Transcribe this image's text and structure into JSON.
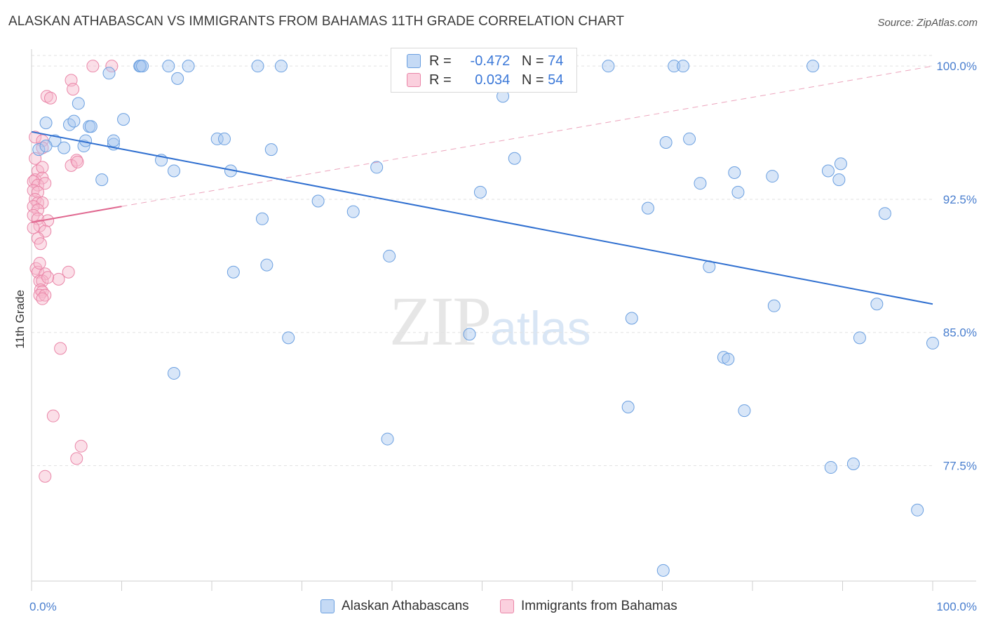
{
  "title": "ALASKAN ATHABASCAN VS IMMIGRANTS FROM BAHAMAS 11TH GRADE CORRELATION CHART",
  "source": "Source: ZipAtlas.com",
  "watermark": {
    "zip": "ZIP",
    "atlas": "atlas"
  },
  "colors": {
    "blue_fill": "#a8c8f0",
    "blue_stroke": "#6a9fe0",
    "blue_line": "#2f6fd0",
    "pink_fill": "#f6b8cc",
    "pink_stroke": "#ea86a8",
    "pink_line": "#e06890",
    "tick_text": "#4a7fcf",
    "grid": "#e2e2e2"
  },
  "legend": {
    "rows": [
      {
        "r_label": "R =",
        "r_value": "-0.472",
        "n_label": "N =",
        "n_value": "74"
      },
      {
        "r_label": "R =",
        "r_value": "0.034",
        "n_label": "N =",
        "n_value": "54"
      }
    ]
  },
  "bottom_legend": {
    "series1": "Alaskan Athabascans",
    "series2": "Immigrants from Bahamas"
  },
  "chart_data": {
    "type": "scatter",
    "title": "ALASKAN ATHABASCAN VS IMMIGRANTS FROM BAHAMAS 11TH GRADE CORRELATION CHART",
    "xlabel": "",
    "ylabel": "11th Grade",
    "xlim": [
      0,
      100
    ],
    "ylim": [
      71.0,
      100.6
    ],
    "x_tick_labels": [
      "0.0%",
      "100.0%"
    ],
    "y_ticks": [
      77.5,
      85.0,
      92.5,
      100.0
    ],
    "y_tick_labels": [
      "77.5%",
      "85.0%",
      "92.5%",
      "100.0%"
    ],
    "grid": true,
    "legend_position": "top-center",
    "series": [
      {
        "name": "Alaskan Athabascans",
        "color": "#a8c8f0",
        "trend": {
          "x": [
            0,
            100
          ],
          "y": [
            96.3,
            86.6
          ]
        },
        "points": [
          [
            0.8,
            95.3
          ],
          [
            1.6,
            96.8
          ],
          [
            2.6,
            95.8
          ],
          [
            1.6,
            95.5
          ],
          [
            3.6,
            95.4
          ],
          [
            4.2,
            96.7
          ],
          [
            4.7,
            96.9
          ],
          [
            5.2,
            97.9
          ],
          [
            5.8,
            95.5
          ],
          [
            6.0,
            95.8
          ],
          [
            6.4,
            96.6
          ],
          [
            6.6,
            96.6
          ],
          [
            7.8,
            93.6
          ],
          [
            8.6,
            99.6
          ],
          [
            9.1,
            95.6
          ],
          [
            9.1,
            95.8
          ],
          [
            10.2,
            97.0
          ],
          [
            12.0,
            100.0
          ],
          [
            12.1,
            100.0
          ],
          [
            12.3,
            100.0
          ],
          [
            14.4,
            94.7
          ],
          [
            15.2,
            100.0
          ],
          [
            15.8,
            94.1
          ],
          [
            16.2,
            99.3
          ],
          [
            17.4,
            100.0
          ],
          [
            20.6,
            95.9
          ],
          [
            21.4,
            95.9
          ],
          [
            22.1,
            94.1
          ],
          [
            25.1,
            100.0
          ],
          [
            25.6,
            91.4
          ],
          [
            26.6,
            95.3
          ],
          [
            27.7,
            100.0
          ],
          [
            31.8,
            92.4
          ],
          [
            35.7,
            91.8
          ],
          [
            38.3,
            94.3
          ],
          [
            39.7,
            89.3
          ],
          [
            49.8,
            92.9
          ],
          [
            52.3,
            98.3
          ],
          [
            53.6,
            94.8
          ],
          [
            64.0,
            100.0
          ],
          [
            68.4,
            92.0
          ],
          [
            70.4,
            95.7
          ],
          [
            71.3,
            100.0
          ],
          [
            72.3,
            100.0
          ],
          [
            73.0,
            95.9
          ],
          [
            74.2,
            93.4
          ],
          [
            78.0,
            94.0
          ],
          [
            78.4,
            92.9
          ],
          [
            82.2,
            93.8
          ],
          [
            86.7,
            100.0
          ],
          [
            88.4,
            94.1
          ],
          [
            89.8,
            94.5
          ],
          [
            89.6,
            93.6
          ],
          [
            94.7,
            91.7
          ],
          [
            22.4,
            88.4
          ],
          [
            26.1,
            88.8
          ],
          [
            28.5,
            84.7
          ],
          [
            15.8,
            82.7
          ],
          [
            39.5,
            79.0
          ],
          [
            48.6,
            84.9
          ],
          [
            66.6,
            85.8
          ],
          [
            66.2,
            80.8
          ],
          [
            75.2,
            88.7
          ],
          [
            76.8,
            83.6
          ],
          [
            77.3,
            83.5
          ],
          [
            79.1,
            80.6
          ],
          [
            82.4,
            86.5
          ],
          [
            88.7,
            77.4
          ],
          [
            91.2,
            77.6
          ],
          [
            91.9,
            84.7
          ],
          [
            93.8,
            86.6
          ],
          [
            98.3,
            75.0
          ],
          [
            100.0,
            84.4
          ],
          [
            70.1,
            71.6
          ]
        ]
      },
      {
        "name": "Immigrants from Bahamas",
        "color": "#f6b8cc",
        "trend": {
          "x": [
            0,
            10
          ],
          "y": [
            91.2,
            92.1
          ]
        },
        "trend_extension": {
          "x": [
            10,
            100
          ],
          "y": [
            92.1,
            100.0
          ]
        },
        "points": [
          [
            1.7,
            98.3
          ],
          [
            2.1,
            98.2
          ],
          [
            4.4,
            99.2
          ],
          [
            4.6,
            98.7
          ],
          [
            6.8,
            100.0
          ],
          [
            8.9,
            100.0
          ],
          [
            0.4,
            96.0
          ],
          [
            1.2,
            95.8
          ],
          [
            5.0,
            94.7
          ],
          [
            4.4,
            94.4
          ],
          [
            5.1,
            94.6
          ],
          [
            0.7,
            94.1
          ],
          [
            1.2,
            94.3
          ],
          [
            0.4,
            93.6
          ],
          [
            1.2,
            93.7
          ],
          [
            0.2,
            93.5
          ],
          [
            0.7,
            93.3
          ],
          [
            1.5,
            93.4
          ],
          [
            0.2,
            93.0
          ],
          [
            0.7,
            92.9
          ],
          [
            0.4,
            92.5
          ],
          [
            0.7,
            92.3
          ],
          [
            1.2,
            92.3
          ],
          [
            0.2,
            92.1
          ],
          [
            0.7,
            91.9
          ],
          [
            0.2,
            91.6
          ],
          [
            0.7,
            91.4
          ],
          [
            1.8,
            91.3
          ],
          [
            0.9,
            91.0
          ],
          [
            1.5,
            90.7
          ],
          [
            0.7,
            90.3
          ],
          [
            1.0,
            90.0
          ],
          [
            0.5,
            88.6
          ],
          [
            0.7,
            88.4
          ],
          [
            1.5,
            88.3
          ],
          [
            0.9,
            87.9
          ],
          [
            1.2,
            87.9
          ],
          [
            3.0,
            88.0
          ],
          [
            4.1,
            88.4
          ],
          [
            1.0,
            87.4
          ],
          [
            1.2,
            87.3
          ],
          [
            0.9,
            87.1
          ],
          [
            1.5,
            87.1
          ],
          [
            1.2,
            86.9
          ],
          [
            3.2,
            84.1
          ],
          [
            2.4,
            80.3
          ],
          [
            5.5,
            78.6
          ],
          [
            5.0,
            77.9
          ],
          [
            1.5,
            76.9
          ],
          [
            0.9,
            88.9
          ],
          [
            1.8,
            88.1
          ],
          [
            0.2,
            90.9
          ],
          [
            1.2,
            95.4
          ],
          [
            0.4,
            94.8
          ]
        ]
      }
    ]
  }
}
